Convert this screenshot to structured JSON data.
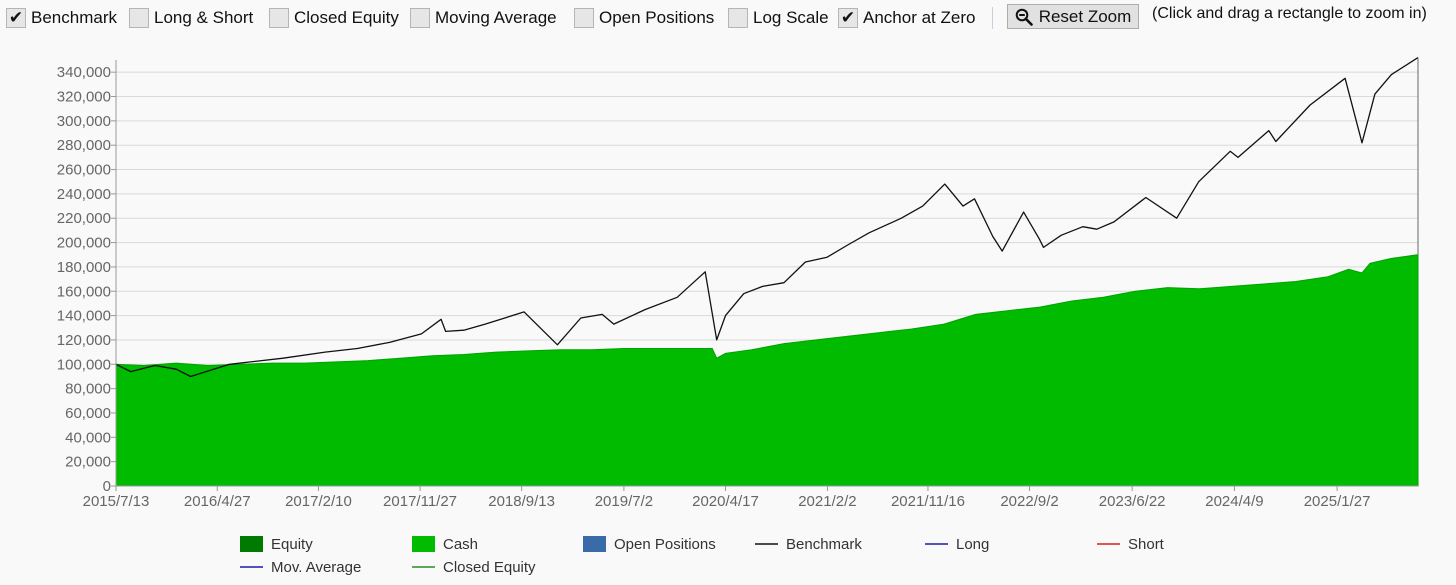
{
  "toolbar": {
    "options": [
      {
        "label": "Benchmark",
        "checked": true
      },
      {
        "label": "Long & Short",
        "checked": false
      },
      {
        "label": "Closed Equity",
        "checked": false
      },
      {
        "label": "Moving Average",
        "checked": false
      },
      {
        "label": "Open Positions",
        "checked": false
      },
      {
        "label": "Log Scale",
        "checked": false
      },
      {
        "label": "Anchor at Zero",
        "checked": true
      }
    ],
    "reset_zoom": "Reset Zoom",
    "zoom_icon": "zoom-out-icon",
    "hint": "(Click and drag a rectangle to zoom in)"
  },
  "chart_data": {
    "type": "area",
    "ylim": [
      0,
      350000
    ],
    "y_ticks": [
      0,
      20000,
      40000,
      60000,
      80000,
      100000,
      120000,
      140000,
      160000,
      180000,
      200000,
      220000,
      240000,
      260000,
      280000,
      300000,
      320000,
      340000
    ],
    "y_tick_labels": [
      "0",
      "20,000",
      "40,000",
      "60,000",
      "80,000",
      "100,000",
      "120,000",
      "140,000",
      "160,000",
      "180,000",
      "200,000",
      "220,000",
      "240,000",
      "260,000",
      "280,000",
      "300,000",
      "320,000",
      "340,000"
    ],
    "x_tick_labels": [
      "2015/7/13",
      "2016/4/27",
      "2017/2/10",
      "2017/11/27",
      "2018/9/13",
      "2019/7/2",
      "2020/4/17",
      "2021/2/2",
      "2021/11/16",
      "2022/9/2",
      "2023/6/22",
      "2024/4/9",
      "2025/1/27"
    ],
    "x_range": [
      "2015/7/13",
      "2025/9/15"
    ],
    "grid": true,
    "legend_placement": "bottom",
    "legend": [
      {
        "label": "Equity",
        "kind": "box",
        "color": "#007a00"
      },
      {
        "label": "Cash",
        "kind": "box",
        "color": "#00bb00"
      },
      {
        "label": "Open Positions",
        "kind": "box",
        "color": "#3a6aa8"
      },
      {
        "label": "Benchmark",
        "kind": "line",
        "color": "#111111"
      },
      {
        "label": "Long",
        "kind": "line",
        "color": "#1a1aa6"
      },
      {
        "label": "Short",
        "kind": "line",
        "color": "#d42020"
      },
      {
        "label": "Mov. Average",
        "kind": "line",
        "color": "#1a1aa6"
      },
      {
        "label": "Closed Equity",
        "kind": "line",
        "color": "#2a8a2a"
      }
    ],
    "series": [
      {
        "name": "Equity",
        "x": [
          "2015/7/13",
          "2015/10/1",
          "2016/1/1",
          "2016/4/1",
          "2016/7/1",
          "2016/10/1",
          "2017/1/1",
          "2017/4/1",
          "2017/7/1",
          "2017/10/1",
          "2018/1/1",
          "2018/4/1",
          "2018/7/1",
          "2018/10/1",
          "2019/1/1",
          "2019/4/1",
          "2019/7/1",
          "2019/10/1",
          "2020/1/1",
          "2020/3/10",
          "2020/3/23",
          "2020/4/17",
          "2020/7/1",
          "2020/10/1",
          "2021/1/1",
          "2021/4/1",
          "2021/7/1",
          "2021/10/1",
          "2022/1/1",
          "2022/4/1",
          "2022/7/1",
          "2022/10/1",
          "2023/1/1",
          "2023/4/1",
          "2023/7/1",
          "2023/10/1",
          "2024/1/1",
          "2024/4/1",
          "2024/7/1",
          "2024/10/1",
          "2025/1/1",
          "2025/3/1",
          "2025/4/8",
          "2025/5/1",
          "2025/7/1",
          "2025/9/15"
        ],
        "values": [
          100000,
          99000,
          101000,
          99000,
          100000,
          101000,
          101000,
          102000,
          103000,
          105000,
          107000,
          108000,
          110000,
          111000,
          112000,
          112000,
          113000,
          113000,
          113000,
          113000,
          105000,
          109000,
          112000,
          117000,
          120000,
          123000,
          126000,
          129000,
          133000,
          141000,
          144000,
          147000,
          152000,
          155000,
          160000,
          163000,
          162000,
          164000,
          166000,
          168000,
          172000,
          178000,
          175000,
          183000,
          187000,
          190000
        ]
      },
      {
        "name": "Benchmark",
        "x": [
          "2015/7/13",
          "2015/8/24",
          "2015/11/1",
          "2016/1/1",
          "2016/2/11",
          "2016/6/1",
          "2016/11/1",
          "2017/3/1",
          "2017/6/1",
          "2017/9/1",
          "2017/12/1",
          "2018/1/26",
          "2018/2/8",
          "2018/4/1",
          "2018/6/1",
          "2018/9/20",
          "2018/12/24",
          "2019/3/1",
          "2019/5/1",
          "2019/6/3",
          "2019/9/1",
          "2019/12/1",
          "2020/2/19",
          "2020/3/23",
          "2020/4/17",
          "2020/6/8",
          "2020/8/1",
          "2020/10/1",
          "2020/12/1",
          "2021/2/1",
          "2021/4/1",
          "2021/6/1",
          "2021/9/1",
          "2021/11/1",
          "2022/1/3",
          "2022/2/24",
          "2022/3/29",
          "2022/5/20",
          "2022/6/16",
          "2022/8/16",
          "2022/9/30",
          "2022/10/12",
          "2022/12/1",
          "2023/2/1",
          "2023/3/13",
          "2023/5/1",
          "2023/7/31",
          "2023/10/27",
          "2023/12/29",
          "2024/3/28",
          "2024/4/19",
          "2024/7/16",
          "2024/8/5",
          "2024/11/11",
          "2025/2/19",
          "2025/4/8",
          "2025/5/15",
          "2025/7/1",
          "2025/9/15"
        ],
        "values": [
          100000,
          94000,
          99000,
          96000,
          90000,
          100000,
          105000,
          110000,
          113000,
          118000,
          125000,
          137000,
          127000,
          128000,
          133000,
          143000,
          116000,
          138000,
          141000,
          133000,
          145000,
          155000,
          176000,
          120000,
          140000,
          158000,
          164000,
          167000,
          184000,
          188000,
          198000,
          208000,
          220000,
          230000,
          248000,
          230000,
          236000,
          205000,
          193000,
          225000,
          203000,
          196000,
          206000,
          213000,
          211000,
          217000,
          237000,
          220000,
          250000,
          275000,
          270000,
          292000,
          283000,
          313000,
          335000,
          282000,
          322000,
          338000,
          352000
        ]
      }
    ]
  }
}
